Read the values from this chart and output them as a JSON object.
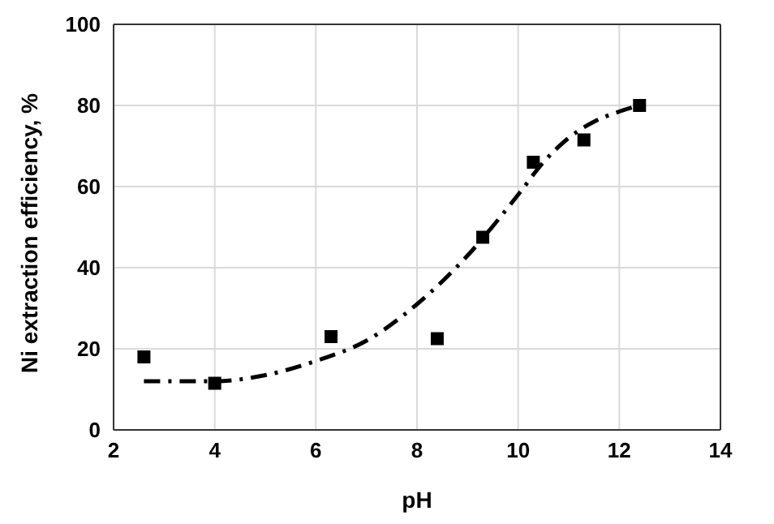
{
  "chart_data": {
    "type": "scatter",
    "xlabel": "pH",
    "ylabel": "Ni  extraction efficiency, %",
    "xlim": [
      2,
      14
    ],
    "xticks": [
      2,
      4,
      6,
      8,
      10,
      12,
      14
    ],
    "ylim": [
      0,
      100
    ],
    "yticks": [
      0,
      20,
      40,
      60,
      80,
      100
    ],
    "grid": true,
    "legend": false,
    "series": [
      {
        "color": "#000000",
        "marker": "square",
        "x": [
          2.6,
          4.0,
          6.3,
          8.4,
          9.3,
          10.3,
          11.3,
          12.4
        ],
        "values": [
          18,
          11.5,
          23,
          22.5,
          47.5,
          66,
          71.5,
          80
        ]
      },
      {
        "type": "line",
        "color": "#000000",
        "marker": "none",
        "line_style": "dashed",
        "x": [
          2.6,
          4,
          5,
          6,
          7,
          8,
          9,
          10,
          10.5,
          11,
          11.5,
          12,
          12.4
        ],
        "values": [
          12,
          12,
          13.5,
          17,
          22,
          31,
          43,
          58,
          66,
          72,
          76,
          78.5,
          80
        ]
      }
    ]
  }
}
